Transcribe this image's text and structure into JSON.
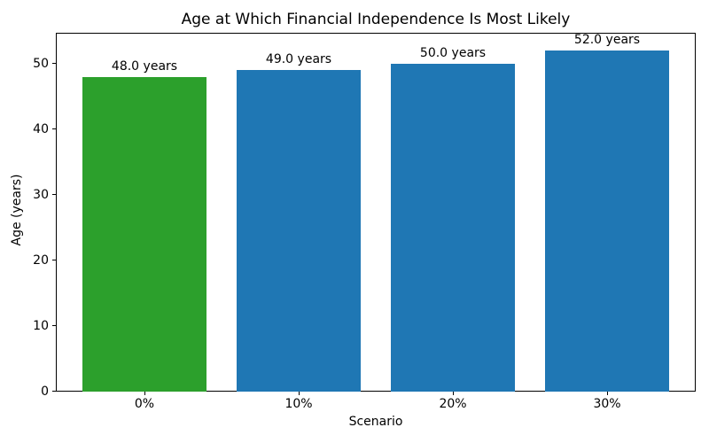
{
  "chart_data": {
    "type": "bar",
    "title": "Age at Which Financial Independence Is Most Likely",
    "xlabel": "Scenario",
    "ylabel": "Age (years)",
    "categories": [
      "0%",
      "10%",
      "20%",
      "30%"
    ],
    "values": [
      48.0,
      49.0,
      50.0,
      52.0
    ],
    "bar_labels": [
      "48.0 years",
      "49.0 years",
      "50.0 years",
      "52.0 years"
    ],
    "bar_colors": [
      "#2ca02c",
      "#1f77b4",
      "#1f77b4",
      "#1f77b4"
    ],
    "yticks": [
      0,
      10,
      20,
      30,
      40,
      50
    ],
    "ylim": [
      0,
      54.7
    ],
    "grid": false,
    "legend": null,
    "background_color": "#ffffff",
    "spine_color": "#000000",
    "text_color": "#000000"
  }
}
